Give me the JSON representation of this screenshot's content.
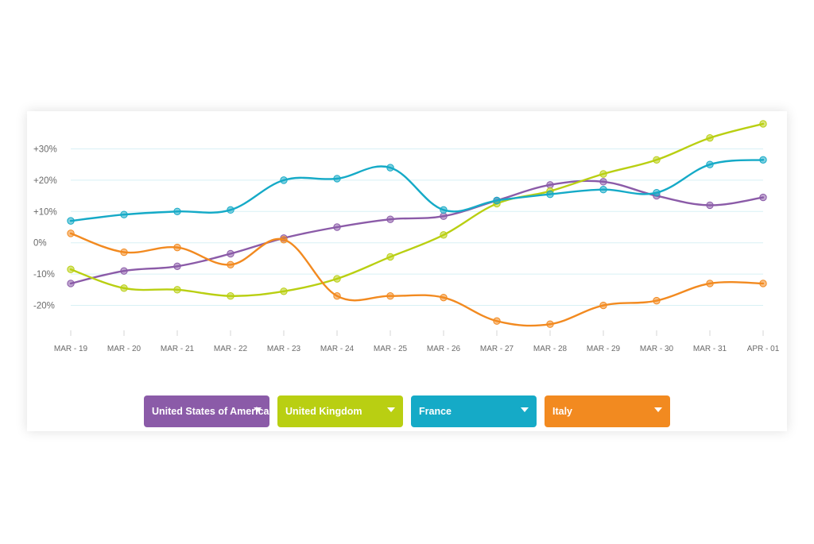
{
  "chart_data": {
    "type": "line",
    "title": "",
    "xlabel": "",
    "ylabel": "",
    "categories": [
      "MAR - 19",
      "MAR - 20",
      "MAR - 21",
      "MAR - 22",
      "MAR - 23",
      "MAR - 24",
      "MAR - 25",
      "MAR - 26",
      "MAR - 27",
      "MAR - 28",
      "MAR - 29",
      "MAR - 30",
      "MAR - 31",
      "APR - 01"
    ],
    "y_ticks": [
      30,
      20,
      10,
      0,
      -10,
      -20
    ],
    "y_tick_labels": [
      "+30%",
      "+20%",
      "+10%",
      "0%",
      "-10%",
      "-20%"
    ],
    "ylim": [
      -29,
      39
    ],
    "grid": "horizontal",
    "legend_position": "bottom",
    "series": [
      {
        "name": "United States of America",
        "color": "#8b5ba8",
        "values": [
          -13,
          -9,
          -7.5,
          -3.5,
          1.5,
          5,
          7.5,
          8.5,
          13.5,
          18.5,
          19.5,
          15,
          12,
          14.5
        ]
      },
      {
        "name": "United Kingdom",
        "color": "#b9cf12",
        "values": [
          -8.5,
          -14.5,
          -15,
          -17,
          -15.5,
          -11.5,
          -4.5,
          2.5,
          12.5,
          16.5,
          22,
          26.5,
          33.5,
          38
        ]
      },
      {
        "name": "France",
        "color": "#15aac7",
        "values": [
          7,
          9,
          10,
          10.5,
          20,
          20.5,
          24,
          10.5,
          13.5,
          15.5,
          17,
          16,
          25,
          26.5
        ]
      },
      {
        "name": "Italy",
        "color": "#f28a20",
        "values": [
          3,
          -3,
          -1.5,
          -7,
          1,
          -17,
          -17,
          -17.5,
          -25,
          -26,
          -20,
          -18.5,
          -13,
          -13
        ]
      }
    ]
  },
  "legend": {
    "items": [
      {
        "label": "United States of America",
        "color": "#8b5ba8"
      },
      {
        "label": "United Kingdom",
        "color": "#b9cf12"
      },
      {
        "label": "France",
        "color": "#15aac7"
      },
      {
        "label": "Italy",
        "color": "#f28a20"
      }
    ]
  },
  "colors": {
    "grid": "#d8f1f5",
    "axis_text": "#6a6a6a"
  }
}
